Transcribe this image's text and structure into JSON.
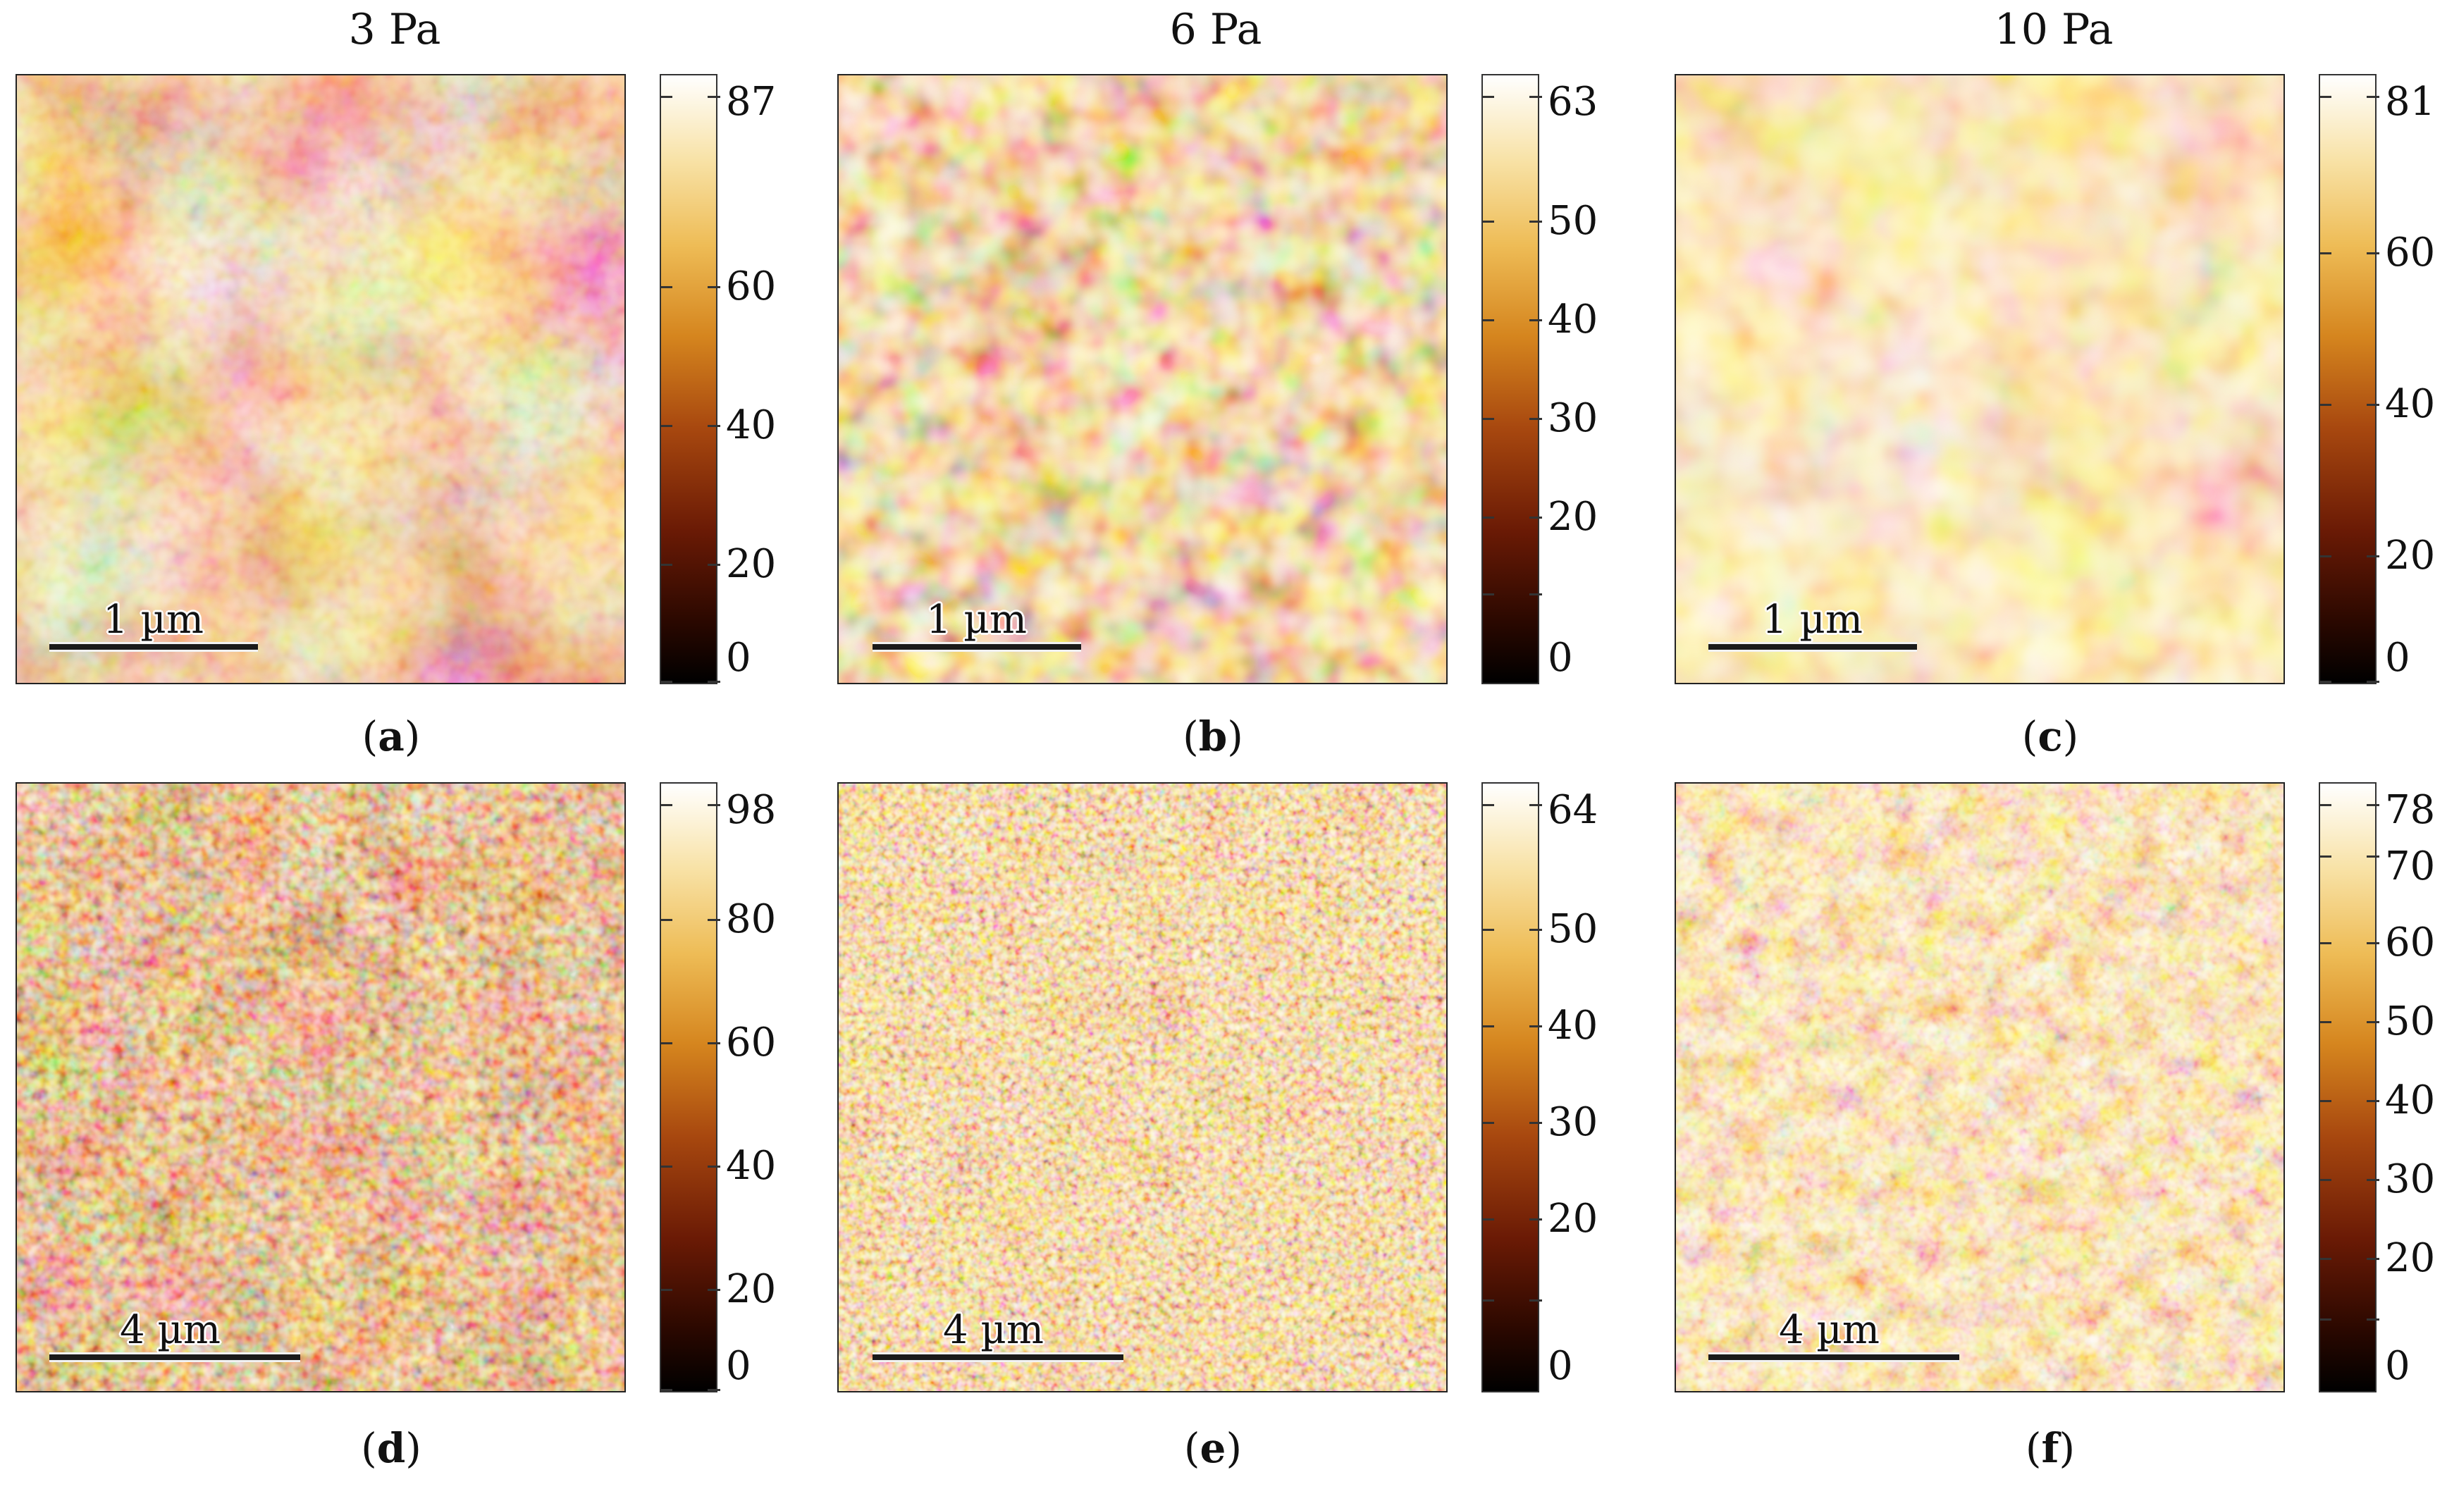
{
  "columns": [
    {
      "title": "3 Pa"
    },
    {
      "title": "6 Pa"
    },
    {
      "title": "10 Pa"
    }
  ],
  "panels": [
    {
      "id": "a",
      "caption_letter": "a",
      "scale_label": "1 µm",
      "colorbar_max": 87,
      "colorbar_ticks": [
        "87",
        "60",
        "40",
        "20",
        "0"
      ]
    },
    {
      "id": "b",
      "caption_letter": "b",
      "scale_label": "1 µm",
      "colorbar_max": 63,
      "colorbar_ticks": [
        "63",
        "50",
        "40",
        "30",
        "20",
        "0"
      ]
    },
    {
      "id": "c",
      "caption_letter": "c",
      "scale_label": "1 µm",
      "colorbar_max": 81,
      "colorbar_ticks": [
        "81",
        "60",
        "40",
        "20",
        "0"
      ]
    },
    {
      "id": "d",
      "caption_letter": "d",
      "scale_label": "4 µm",
      "colorbar_max": 98,
      "colorbar_ticks": [
        "98",
        "80",
        "60",
        "40",
        "20",
        "0"
      ]
    },
    {
      "id": "e",
      "caption_letter": "e",
      "scale_label": "4 µm",
      "colorbar_max": 64,
      "colorbar_ticks": [
        "64",
        "50",
        "40",
        "30",
        "20",
        "0"
      ]
    },
    {
      "id": "f",
      "caption_letter": "f",
      "scale_label": "4 µm",
      "colorbar_max": 78,
      "colorbar_ticks": [
        "78",
        "70",
        "60",
        "50",
        "40",
        "30",
        "20",
        "0"
      ]
    }
  ],
  "colors": {
    "dark": "#1a0500",
    "mid": "#b5561a",
    "light": "#fbe9bf"
  }
}
